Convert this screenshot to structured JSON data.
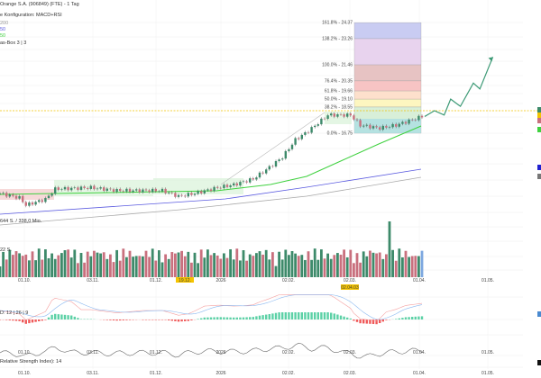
{
  "legend": {
    "title": "Orange S.A. (906849) (FTE) - 1 Tag",
    "config": "e Konfiguration: MACD+RSI",
    "ma_a": "200",
    "ma_b": "50",
    "ma_c": "50",
    "box": "as-Box 3 | 3",
    "range_info": "644 S. / 338,0 Mio.",
    "volume": "22 S.",
    "macd": "D: 12 | 26 | 9",
    "rsi": "Relative Strength Index): 14"
  },
  "colors": {
    "up": "#3d8a6a",
    "down": "#c9707e",
    "ma50": "#3fd13f",
    "ma100": "#5a5ae0",
    "ma200": "#aaaaaa",
    "resistance": "#f2c200",
    "arrow": "#3d9a76"
  },
  "date_labels": [
    "01.10.",
    "03.11.",
    "01.12.",
    "2026",
    "02.02.",
    "02.03.",
    "01.04.",
    "01.05."
  ],
  "marker_labels": [
    "19.12.",
    "02.04.03"
  ],
  "chart_data": {
    "type": "candlestick",
    "title": "Orange S.A. (906849) (FTE) - 1 Tag",
    "price_keypoints": [
      [
        0,
        12.6
      ],
      [
        6,
        12.3
      ],
      [
        8,
        11.8
      ],
      [
        14,
        12.2
      ],
      [
        17,
        12.9
      ],
      [
        28,
        13.0
      ],
      [
        36,
        12.8
      ],
      [
        50,
        12.8
      ],
      [
        55,
        12.4
      ],
      [
        60,
        12.6
      ],
      [
        67,
        13.0
      ],
      [
        72,
        13.2
      ],
      [
        78,
        13.6
      ],
      [
        83,
        14.4
      ],
      [
        87,
        15.1
      ],
      [
        91,
        16.3
      ],
      [
        95,
        16.9
      ],
      [
        101,
        18.0
      ],
      [
        108,
        18.0
      ],
      [
        111,
        17.3
      ],
      [
        117,
        17.1
      ],
      [
        122,
        17.3
      ],
      [
        130,
        17.9
      ]
    ],
    "fibonacci": [
      {
        "label": "161.8% - 24.37",
        "price": 24.37
      },
      {
        "label": "138.2% - 23.26",
        "price": 23.26
      },
      {
        "label": "100.0% - 21.46",
        "price": 21.46
      },
      {
        "label": "76.4% - 20.35",
        "price": 20.35
      },
      {
        "label": "61.8% - 19.66",
        "price": 19.66
      },
      {
        "label": "50.0% - 19.10",
        "price": 19.1
      },
      {
        "label": "38.2% - 18.55",
        "price": 18.55
      },
      {
        "label": "0.0% - 16.75",
        "price": 16.75
      }
    ],
    "resistance_price": 18.3,
    "projection": [
      [
        130,
        17.9
      ],
      [
        133,
        18.3
      ],
      [
        136,
        18.0
      ],
      [
        138,
        19.1
      ],
      [
        141,
        18.6
      ],
      [
        145,
        20.2
      ],
      [
        147,
        19.8
      ],
      [
        151,
        22.0
      ]
    ]
  }
}
